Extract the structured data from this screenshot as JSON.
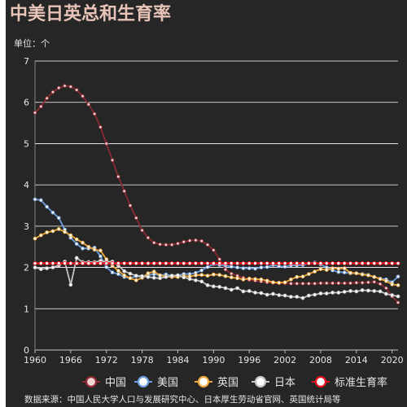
{
  "chart_data": {
    "type": "line",
    "title": "中美日英总和生育率",
    "unit_label": "单位：个",
    "source": "数据来源：中国人民大学人口与发展研究中心、日本厚生劳动省官网、英国统计局等",
    "ylim": [
      0,
      7
    ],
    "yticks": [
      "0",
      "1",
      "2",
      "3",
      "4",
      "5",
      "6",
      "7"
    ],
    "xlim": [
      1960,
      2021
    ],
    "xticks": [
      "1960",
      "1966",
      "1972",
      "1978",
      "1984",
      "1990",
      "1996",
      "2002",
      "2008",
      "2014",
      "2020"
    ],
    "grid": "horizontal",
    "legend_position": "bottom-right",
    "x": [
      1960,
      1961,
      1962,
      1963,
      1964,
      1965,
      1966,
      1967,
      1968,
      1969,
      1970,
      1971,
      1972,
      1973,
      1974,
      1975,
      1976,
      1977,
      1978,
      1979,
      1980,
      1981,
      1982,
      1983,
      1984,
      1985,
      1986,
      1987,
      1988,
      1989,
      1990,
      1991,
      1992,
      1993,
      1994,
      1995,
      1996,
      1997,
      1998,
      1999,
      2000,
      2001,
      2002,
      2003,
      2004,
      2005,
      2006,
      2007,
      2008,
      2009,
      2010,
      2011,
      2012,
      2013,
      2014,
      2015,
      2016,
      2017,
      2018,
      2019,
      2020,
      2021
    ],
    "series": [
      {
        "name": "中国",
        "color": "#8b2a33",
        "values": [
          5.75,
          5.9,
          6.1,
          6.25,
          6.35,
          6.4,
          6.38,
          6.3,
          6.15,
          5.95,
          5.72,
          5.4,
          5.0,
          4.6,
          4.2,
          3.85,
          3.5,
          3.2,
          2.9,
          2.72,
          2.6,
          2.56,
          2.55,
          2.55,
          2.58,
          2.62,
          2.65,
          2.66,
          2.64,
          2.55,
          2.42,
          2.2,
          1.95,
          1.85,
          1.8,
          1.75,
          1.7,
          1.68,
          1.66,
          1.64,
          1.63,
          1.62,
          1.62,
          1.61,
          1.61,
          1.61,
          1.61,
          1.61,
          1.62,
          1.62,
          1.62,
          1.62,
          1.62,
          1.62,
          1.63,
          1.63,
          1.64,
          1.65,
          1.6,
          1.5,
          1.3,
          1.15
        ]
      },
      {
        "name": "美国",
        "color": "#6e9fde",
        "values": [
          3.65,
          3.63,
          3.47,
          3.33,
          3.2,
          2.92,
          2.72,
          2.57,
          2.46,
          2.46,
          2.48,
          2.27,
          2.01,
          1.88,
          1.84,
          1.77,
          1.74,
          1.79,
          1.76,
          1.81,
          1.84,
          1.81,
          1.83,
          1.8,
          1.81,
          1.84,
          1.84,
          1.87,
          1.93,
          2.01,
          2.08,
          2.06,
          2.05,
          2.02,
          2.0,
          1.98,
          1.98,
          1.97,
          2.0,
          2.01,
          2.06,
          2.03,
          2.02,
          2.05,
          2.05,
          2.06,
          2.1,
          2.12,
          2.07,
          2.0,
          1.93,
          1.89,
          1.88,
          1.86,
          1.86,
          1.84,
          1.82,
          1.77,
          1.73,
          1.71,
          1.64,
          1.78
        ]
      },
      {
        "name": "英国",
        "color": "#f0a83a",
        "values": [
          2.7,
          2.78,
          2.85,
          2.88,
          2.93,
          2.86,
          2.78,
          2.68,
          2.6,
          2.5,
          2.43,
          2.41,
          2.2,
          2.04,
          1.92,
          1.81,
          1.74,
          1.69,
          1.75,
          1.86,
          1.9,
          1.81,
          1.78,
          1.77,
          1.77,
          1.79,
          1.78,
          1.81,
          1.82,
          1.8,
          1.83,
          1.82,
          1.79,
          1.76,
          1.74,
          1.71,
          1.73,
          1.72,
          1.71,
          1.68,
          1.64,
          1.63,
          1.64,
          1.71,
          1.77,
          1.78,
          1.84,
          1.9,
          1.96,
          1.94,
          1.98,
          1.97,
          1.98,
          1.87,
          1.86,
          1.83,
          1.81,
          1.77,
          1.72,
          1.67,
          1.59,
          1.57
        ]
      },
      {
        "name": "日本",
        "color": "#c4c4c4",
        "values": [
          2.0,
          1.96,
          1.98,
          2.0,
          2.05,
          2.14,
          1.58,
          2.23,
          2.13,
          2.13,
          2.13,
          2.16,
          2.14,
          2.14,
          2.05,
          1.91,
          1.85,
          1.8,
          1.79,
          1.77,
          1.75,
          1.74,
          1.77,
          1.8,
          1.81,
          1.76,
          1.72,
          1.69,
          1.66,
          1.57,
          1.54,
          1.53,
          1.5,
          1.46,
          1.5,
          1.42,
          1.43,
          1.39,
          1.38,
          1.34,
          1.36,
          1.33,
          1.32,
          1.29,
          1.29,
          1.26,
          1.32,
          1.34,
          1.37,
          1.37,
          1.39,
          1.39,
          1.41,
          1.43,
          1.42,
          1.45,
          1.44,
          1.43,
          1.42,
          1.36,
          1.33,
          1.3
        ]
      },
      {
        "name": "标准生育率",
        "color": "#e8101c",
        "values": [
          2.1,
          2.1,
          2.1,
          2.1,
          2.1,
          2.1,
          2.1,
          2.1,
          2.1,
          2.1,
          2.1,
          2.1,
          2.1,
          2.1,
          2.1,
          2.1,
          2.1,
          2.1,
          2.1,
          2.1,
          2.1,
          2.1,
          2.1,
          2.1,
          2.1,
          2.1,
          2.1,
          2.1,
          2.1,
          2.1,
          2.1,
          2.1,
          2.1,
          2.1,
          2.1,
          2.1,
          2.1,
          2.1,
          2.1,
          2.1,
          2.1,
          2.1,
          2.1,
          2.1,
          2.1,
          2.1,
          2.1,
          2.1,
          2.1,
          2.1,
          2.1,
          2.1,
          2.1,
          2.1,
          2.1,
          2.1,
          2.1,
          2.1,
          2.1,
          2.1,
          2.1,
          2.1
        ]
      }
    ]
  }
}
